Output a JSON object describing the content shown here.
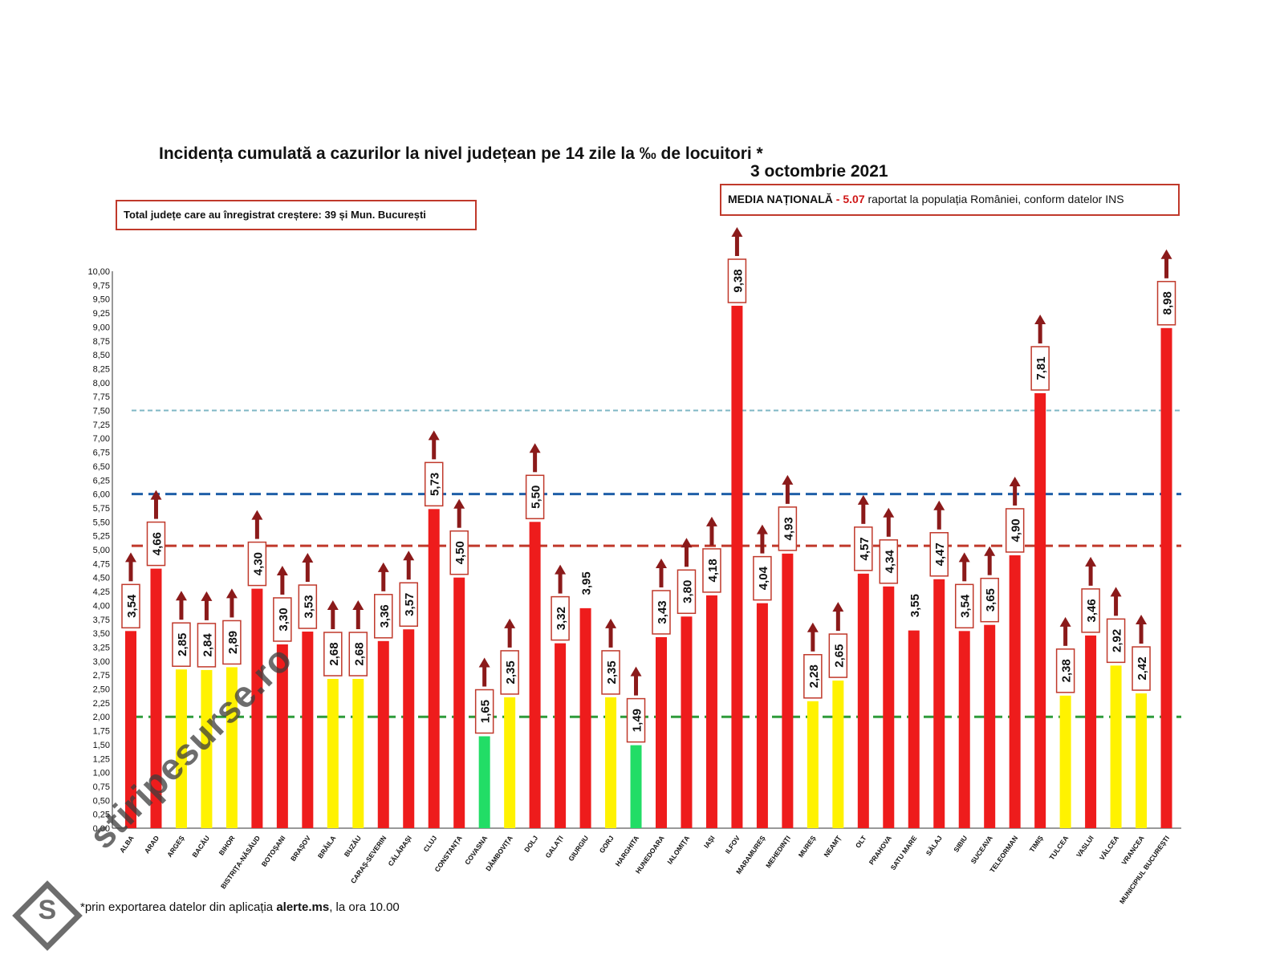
{
  "chart_data": {
    "type": "bar",
    "title": "Incidența cumulată a cazurilor la nivel județean pe 14 zile la ‰ de locuitori *",
    "date": "3 octombrie 2021",
    "ylim": [
      0,
      10
    ],
    "yticks": [
      "0,00",
      "0,25",
      "0,50",
      "0,75",
      "1,00",
      "1,25",
      "1,50",
      "1,75",
      "2,00",
      "2,25",
      "2,50",
      "2,75",
      "3,00",
      "3,25",
      "3,50",
      "3,75",
      "4,00",
      "4,25",
      "4,50",
      "4,75",
      "5,00",
      "5,25",
      "5,50",
      "5,75",
      "6,00",
      "6,25",
      "6,50",
      "6,75",
      "7,00",
      "7,25",
      "7,50",
      "7,75",
      "8,00",
      "8,25",
      "8,50",
      "8,75",
      "9,00",
      "9,25",
      "9,50",
      "9,75",
      "10,00"
    ],
    "categories": [
      "ALBA",
      "ARAD",
      "ARGEȘ",
      "BACĂU",
      "BIHOR",
      "BISTRIȚA-NĂSĂUD",
      "BOTOȘANI",
      "BRAȘOV",
      "BRĂILA",
      "BUZĂU",
      "CARAȘ-SEVERIN",
      "CĂLĂRAȘI",
      "CLUJ",
      "CONSTANȚA",
      "COVASNA",
      "DÂMBOVIȚA",
      "DOLJ",
      "GALAȚI",
      "GIURGIU",
      "GORJ",
      "HARGHITA",
      "HUNEDOARA",
      "IALOMIȚA",
      "IAȘI",
      "ILFOV",
      "MARAMUREȘ",
      "MEHEDINȚI",
      "MUREȘ",
      "NEAMȚ",
      "OLT",
      "PRAHOVA",
      "SATU MARE",
      "SĂLAJ",
      "SIBIU",
      "SUCEAVA",
      "TELEORMAN",
      "TIMIȘ",
      "TULCEA",
      "VASLUI",
      "VÂLCEA",
      "VRANCEA",
      "MUNICIPIUL BUCUREȘTI"
    ],
    "values": [
      3.54,
      4.66,
      2.85,
      2.84,
      2.89,
      4.3,
      3.3,
      3.53,
      2.68,
      2.68,
      3.36,
      3.57,
      5.73,
      4.5,
      1.65,
      2.35,
      5.5,
      3.32,
      3.95,
      2.35,
      1.49,
      3.43,
      3.8,
      4.18,
      9.38,
      4.04,
      4.93,
      2.28,
      2.65,
      4.57,
      4.34,
      3.55,
      4.47,
      3.54,
      3.65,
      4.9,
      7.81,
      2.38,
      3.46,
      2.92,
      2.42,
      8.98
    ],
    "labels": [
      "3,54",
      "4,66",
      "2,85",
      "2,84",
      "2,89",
      "4,30",
      "3,30",
      "3,53",
      "2,68",
      "2,68",
      "3,36",
      "3,57",
      "5,73",
      "4,50",
      "1,65",
      "2,35",
      "5,50",
      "3,32",
      "3,95",
      "2,35",
      "1,49",
      "3,43",
      "3,80",
      "4,18",
      "9,38",
      "4,04",
      "4,93",
      "2,28",
      "2,65",
      "4,57",
      "4,34",
      "3,55",
      "4,47",
      "3,54",
      "3,65",
      "4,90",
      "7,81",
      "2,38",
      "3,46",
      "2,92",
      "2,42",
      "8,98"
    ],
    "label_boxed": [
      true,
      true,
      true,
      true,
      true,
      true,
      true,
      true,
      true,
      true,
      true,
      true,
      true,
      true,
      true,
      true,
      true,
      true,
      false,
      true,
      true,
      true,
      true,
      true,
      true,
      true,
      true,
      true,
      true,
      true,
      true,
      false,
      true,
      true,
      true,
      true,
      true,
      true,
      true,
      true,
      true,
      true
    ],
    "arrows": [
      true,
      true,
      true,
      true,
      true,
      true,
      true,
      true,
      true,
      true,
      true,
      true,
      true,
      true,
      true,
      true,
      true,
      true,
      false,
      true,
      true,
      true,
      true,
      true,
      true,
      true,
      true,
      true,
      true,
      true,
      true,
      false,
      true,
      true,
      true,
      true,
      true,
      true,
      true,
      true,
      true,
      true
    ],
    "thresholds": [
      {
        "value": 7.5,
        "color": "#7fb7c4",
        "style": "dotted"
      },
      {
        "value": 6.0,
        "color": "#1f5fa8",
        "style": "dashed"
      },
      {
        "value": 5.07,
        "color": "#c0392b",
        "style": "dashed"
      },
      {
        "value": 2.0,
        "color": "#2e9b3a",
        "style": "dashed"
      }
    ],
    "colors": {
      "red": "#ee1c1c",
      "yellow": "#fff200",
      "green": "#22dd66",
      "arrow": "#8b1a1a",
      "box_border": "#c0392b"
    }
  },
  "info_left": "Total județe care au înregistrat creștere:  39 și Mun. București",
  "media": {
    "label": "MEDIA NAȚIONALĂ",
    "dash": " - ",
    "value": "5.07",
    "text": " raportat la populația României, conform datelor INS"
  },
  "footnote": {
    "prefix": "*prin exportarea datelor din aplicația ",
    "app": "alerte.ms",
    "suffix": ", la ora 10.00"
  },
  "watermark": "stiripesurse.ro",
  "watermark_logo": "S"
}
